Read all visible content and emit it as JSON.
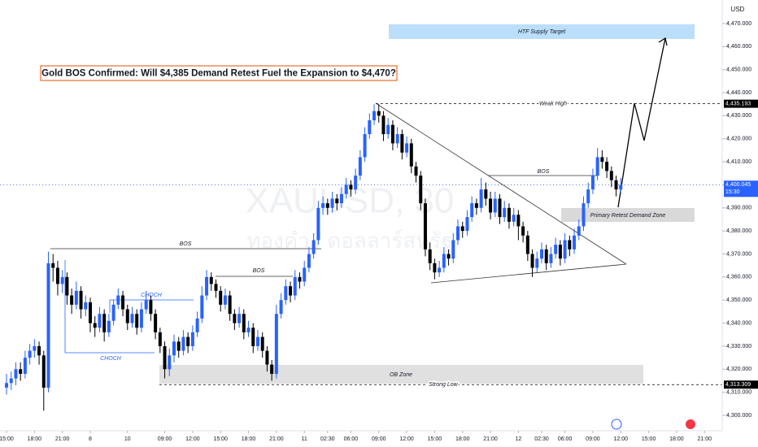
{
  "chart_data": {
    "type": "candlestick",
    "title": "Gold BOS Confirmed: Will $4,385 Demand Retest Fuel the Expansion to $4,470?",
    "watermark": "XAUUSD, 30",
    "watermark_sub": "ทองคำ / ดอลลาร์สหรัฐ",
    "currency": "USD",
    "up_color": "#2962ff",
    "down_color": "#000000",
    "xlim": [
      -1.4,
      153.8
    ],
    "ylim": [
      4293.3,
      4480.2
    ],
    "xticks": [
      {
        "value": 0,
        "label": "15:00"
      },
      {
        "value": 6,
        "label": "18:00"
      },
      {
        "value": 12,
        "label": "21:00"
      },
      {
        "value": 18,
        "label": "8"
      },
      {
        "value": 26,
        "label": "10"
      },
      {
        "value": 34,
        "label": "09:00"
      },
      {
        "value": 40,
        "label": "12:00"
      },
      {
        "value": 46,
        "label": "15:00"
      },
      {
        "value": 52,
        "label": "18:00"
      },
      {
        "value": 58,
        "label": "21:00"
      },
      {
        "value": 64,
        "label": "11"
      },
      {
        "value": 69,
        "label": "02:30"
      },
      {
        "value": 74,
        "label": "06:00"
      },
      {
        "value": 80,
        "label": "09:00"
      },
      {
        "value": 86,
        "label": "12:00"
      },
      {
        "value": 92,
        "label": "15:00"
      },
      {
        "value": 98,
        "label": "18:00"
      },
      {
        "value": 104,
        "label": "21:00"
      },
      {
        "value": 110,
        "label": "12"
      },
      {
        "value": 115,
        "label": "02:30"
      },
      {
        "value": 120,
        "label": "06:00"
      },
      {
        "value": 126,
        "label": "09:00"
      },
      {
        "value": 132,
        "label": "12:00"
      },
      {
        "value": 138,
        "label": "15:00"
      },
      {
        "value": 144,
        "label": "18:00"
      },
      {
        "value": 150,
        "label": "21:00"
      }
    ],
    "yticks": [
      {
        "value": 4300,
        "label": "4,300.000"
      },
      {
        "value": 4310,
        "label": "4,310.000"
      },
      {
        "value": 4320,
        "label": "4,320.000"
      },
      {
        "value": 4330,
        "label": "4,330.000"
      },
      {
        "value": 4340,
        "label": "4,340.000"
      },
      {
        "value": 4350,
        "label": "4,350.000"
      },
      {
        "value": 4360,
        "label": "4,360.000"
      },
      {
        "value": 4370,
        "label": "4,370.000"
      },
      {
        "value": 4380,
        "label": "4,380.000"
      },
      {
        "value": 4390,
        "label": "4,390.000"
      },
      {
        "value": 4400,
        "label": "4,400.000"
      },
      {
        "value": 4410,
        "label": "4,410.000"
      },
      {
        "value": 4420,
        "label": "4,420.000"
      },
      {
        "value": 4430,
        "label": "4,430.000"
      },
      {
        "value": 4440,
        "label": "4,440.000"
      },
      {
        "value": 4450,
        "label": "4,450.000"
      },
      {
        "value": 4460,
        "label": "4,460.000"
      },
      {
        "value": 4470,
        "label": "4,470.000"
      }
    ],
    "price_labels": [
      {
        "value": 4435.193,
        "label": "4,435.193",
        "color": "#000000"
      },
      {
        "value": 4400.045,
        "label": "4,400.045",
        "sub": "15:30",
        "color": "#2962ff"
      },
      {
        "value": 4313.309,
        "label": "4,313.309",
        "color": "#000000"
      }
    ],
    "annotations": [
      "BOS",
      "BOS",
      "BOS",
      "CHOCH",
      "CHOCH",
      "Weak High",
      "Strong Low",
      "OB Zone",
      "Primary Retest Demand Zone",
      "HTF Supply Target"
    ],
    "candles": [
      [
        4312,
        4318,
        4309,
        4314
      ],
      [
        4314,
        4319,
        4311,
        4316
      ],
      [
        4316,
        4323,
        4313,
        4320
      ],
      [
        4320,
        4323,
        4315,
        4318
      ],
      [
        4318,
        4328,
        4316,
        4325
      ],
      [
        4325,
        4331,
        4322,
        4328
      ],
      [
        4328,
        4333,
        4325,
        4330
      ],
      [
        4330,
        4332,
        4322,
        4326
      ],
      [
        4326,
        4328,
        4302,
        4312
      ],
      [
        4312,
        4371,
        4310,
        4366
      ],
      [
        4366,
        4370,
        4358,
        4364
      ],
      [
        4364,
        4367,
        4352,
        4357
      ],
      [
        4357,
        4363,
        4353,
        4360
      ],
      [
        4360,
        4362,
        4348,
        4352
      ],
      [
        4352,
        4355,
        4344,
        4348
      ],
      [
        4348,
        4358,
        4346,
        4354
      ],
      [
        4354,
        4356,
        4342,
        4346
      ],
      [
        4346,
        4352,
        4343,
        4349
      ],
      [
        4349,
        4351,
        4336,
        4340
      ],
      [
        4340,
        4343,
        4334,
        4338
      ],
      [
        4338,
        4347,
        4336,
        4344
      ],
      [
        4344,
        4346,
        4332,
        4336
      ],
      [
        4336,
        4344,
        4334,
        4341
      ],
      [
        4341,
        4350,
        4339,
        4348
      ],
      [
        4348,
        4355,
        4346,
        4352
      ],
      [
        4352,
        4354,
        4343,
        4346
      ],
      [
        4346,
        4348,
        4337,
        4340
      ],
      [
        4340,
        4347,
        4338,
        4344
      ],
      [
        4344,
        4346,
        4335,
        4338
      ],
      [
        4338,
        4349,
        4336,
        4346
      ],
      [
        4346,
        4354,
        4344,
        4350
      ],
      [
        4350,
        4352,
        4341,
        4344
      ],
      [
        4344,
        4346,
        4333,
        4336
      ],
      [
        4336,
        4338,
        4327,
        4330
      ],
      [
        4330,
        4332,
        4316,
        4320
      ],
      [
        4320,
        4329,
        4317,
        4326
      ],
      [
        4326,
        4335,
        4323,
        4332
      ],
      [
        4332,
        4334,
        4325,
        4328
      ],
      [
        4328,
        4337,
        4326,
        4334
      ],
      [
        4334,
        4336,
        4327,
        4330
      ],
      [
        4330,
        4339,
        4328,
        4336
      ],
      [
        4336,
        4345,
        4334,
        4342
      ],
      [
        4342,
        4356,
        4340,
        4352
      ],
      [
        4352,
        4363,
        4350,
        4360
      ],
      [
        4360,
        4362,
        4354,
        4357
      ],
      [
        4357,
        4359,
        4351,
        4354
      ],
      [
        4354,
        4356,
        4345,
        4348
      ],
      [
        4348,
        4355,
        4346,
        4352
      ],
      [
        4352,
        4354,
        4341,
        4344
      ],
      [
        4344,
        4346,
        4337,
        4340
      ],
      [
        4340,
        4347,
        4338,
        4344
      ],
      [
        4344,
        4346,
        4333,
        4336
      ],
      [
        4336,
        4341,
        4334,
        4338
      ],
      [
        4338,
        4340,
        4327,
        4330
      ],
      [
        4330,
        4337,
        4328,
        4334
      ],
      [
        4334,
        4336,
        4325,
        4328
      ],
      [
        4328,
        4330,
        4319,
        4322
      ],
      [
        4322,
        4324,
        4315,
        4318
      ],
      [
        4318,
        4348,
        4316,
        4344
      ],
      [
        4344,
        4353,
        4342,
        4350
      ],
      [
        4350,
        4359,
        4348,
        4356
      ],
      [
        4356,
        4358,
        4349,
        4352
      ],
      [
        4352,
        4363,
        4350,
        4360
      ],
      [
        4360,
        4362,
        4355,
        4358
      ],
      [
        4358,
        4367,
        4356,
        4364
      ],
      [
        4364,
        4373,
        4362,
        4370
      ],
      [
        4370,
        4379,
        4368,
        4376
      ],
      [
        4376,
        4393,
        4374,
        4390
      ],
      [
        4390,
        4395,
        4387,
        4392
      ],
      [
        4392,
        4394,
        4387,
        4390
      ],
      [
        4390,
        4397,
        4388,
        4394
      ],
      [
        4394,
        4396,
        4389,
        4392
      ],
      [
        4392,
        4399,
        4390,
        4396
      ],
      [
        4396,
        4403,
        4394,
        4400
      ],
      [
        4400,
        4402,
        4395,
        4398
      ],
      [
        4398,
        4407,
        4396,
        4404
      ],
      [
        4404,
        4415,
        4402,
        4412
      ],
      [
        4412,
        4425,
        4410,
        4422
      ],
      [
        4422,
        4431,
        4420,
        4428
      ],
      [
        4428,
        4435,
        4426,
        4432
      ],
      [
        4432,
        4435,
        4427,
        4430
      ],
      [
        4430,
        4432,
        4419,
        4422
      ],
      [
        4422,
        4429,
        4420,
        4426
      ],
      [
        4426,
        4428,
        4415,
        4418
      ],
      [
        4418,
        4425,
        4416,
        4422
      ],
      [
        4422,
        4424,
        4411,
        4414
      ],
      [
        4414,
        4421,
        4412,
        4418
      ],
      [
        4418,
        4420,
        4405,
        4408
      ],
      [
        4408,
        4410,
        4401,
        4404
      ],
      [
        4404,
        4406,
        4389,
        4392
      ],
      [
        4392,
        4394,
        4369,
        4372
      ],
      [
        4372,
        4375,
        4363,
        4366
      ],
      [
        4366,
        4368,
        4359,
        4362
      ],
      [
        4362,
        4367,
        4360,
        4364
      ],
      [
        4364,
        4373,
        4362,
        4370
      ],
      [
        4370,
        4372,
        4365,
        4368
      ],
      [
        4368,
        4379,
        4366,
        4376
      ],
      [
        4376,
        4385,
        4374,
        4382
      ],
      [
        4382,
        4384,
        4377,
        4380
      ],
      [
        4380,
        4389,
        4378,
        4386
      ],
      [
        4386,
        4395,
        4384,
        4392
      ],
      [
        4392,
        4394,
        4387,
        4390
      ],
      [
        4390,
        4403,
        4388,
        4398
      ],
      [
        4398,
        4401,
        4391,
        4394
      ],
      [
        4394,
        4397,
        4385,
        4388
      ],
      [
        4388,
        4397,
        4386,
        4394
      ],
      [
        4394,
        4396,
        4383,
        4386
      ],
      [
        4386,
        4393,
        4384,
        4390
      ],
      [
        4390,
        4392,
        4381,
        4384
      ],
      [
        4384,
        4390,
        4382,
        4387
      ],
      [
        4387,
        4389,
        4376,
        4382
      ],
      [
        4382,
        4384,
        4375,
        4378
      ],
      [
        4378,
        4380,
        4367,
        4370
      ],
      [
        4370,
        4372,
        4360,
        4364
      ],
      [
        4364,
        4371,
        4362,
        4368
      ],
      [
        4368,
        4375,
        4366,
        4372
      ],
      [
        4372,
        4374,
        4363,
        4366
      ],
      [
        4366,
        4373,
        4364,
        4370
      ],
      [
        4370,
        4377,
        4368,
        4374
      ],
      [
        4374,
        4376,
        4365,
        4368
      ],
      [
        4368,
        4379,
        4366,
        4376
      ],
      [
        4376,
        4378,
        4369,
        4372
      ],
      [
        4372,
        4381,
        4370,
        4378
      ],
      [
        4378,
        4385,
        4376,
        4382
      ],
      [
        4382,
        4395,
        4380,
        4392
      ],
      [
        4392,
        4401,
        4390,
        4398
      ],
      [
        4398,
        4407,
        4396,
        4404
      ],
      [
        4404,
        4416,
        4402,
        4412
      ],
      [
        4412,
        4415,
        4407,
        4410
      ],
      [
        4410,
        4412,
        4403,
        4406
      ],
      [
        4406,
        4408,
        4399,
        4402
      ],
      [
        4402,
        4404,
        4395,
        4398
      ],
      [
        4398,
        4403,
        4396,
        4400
      ]
    ]
  }
}
